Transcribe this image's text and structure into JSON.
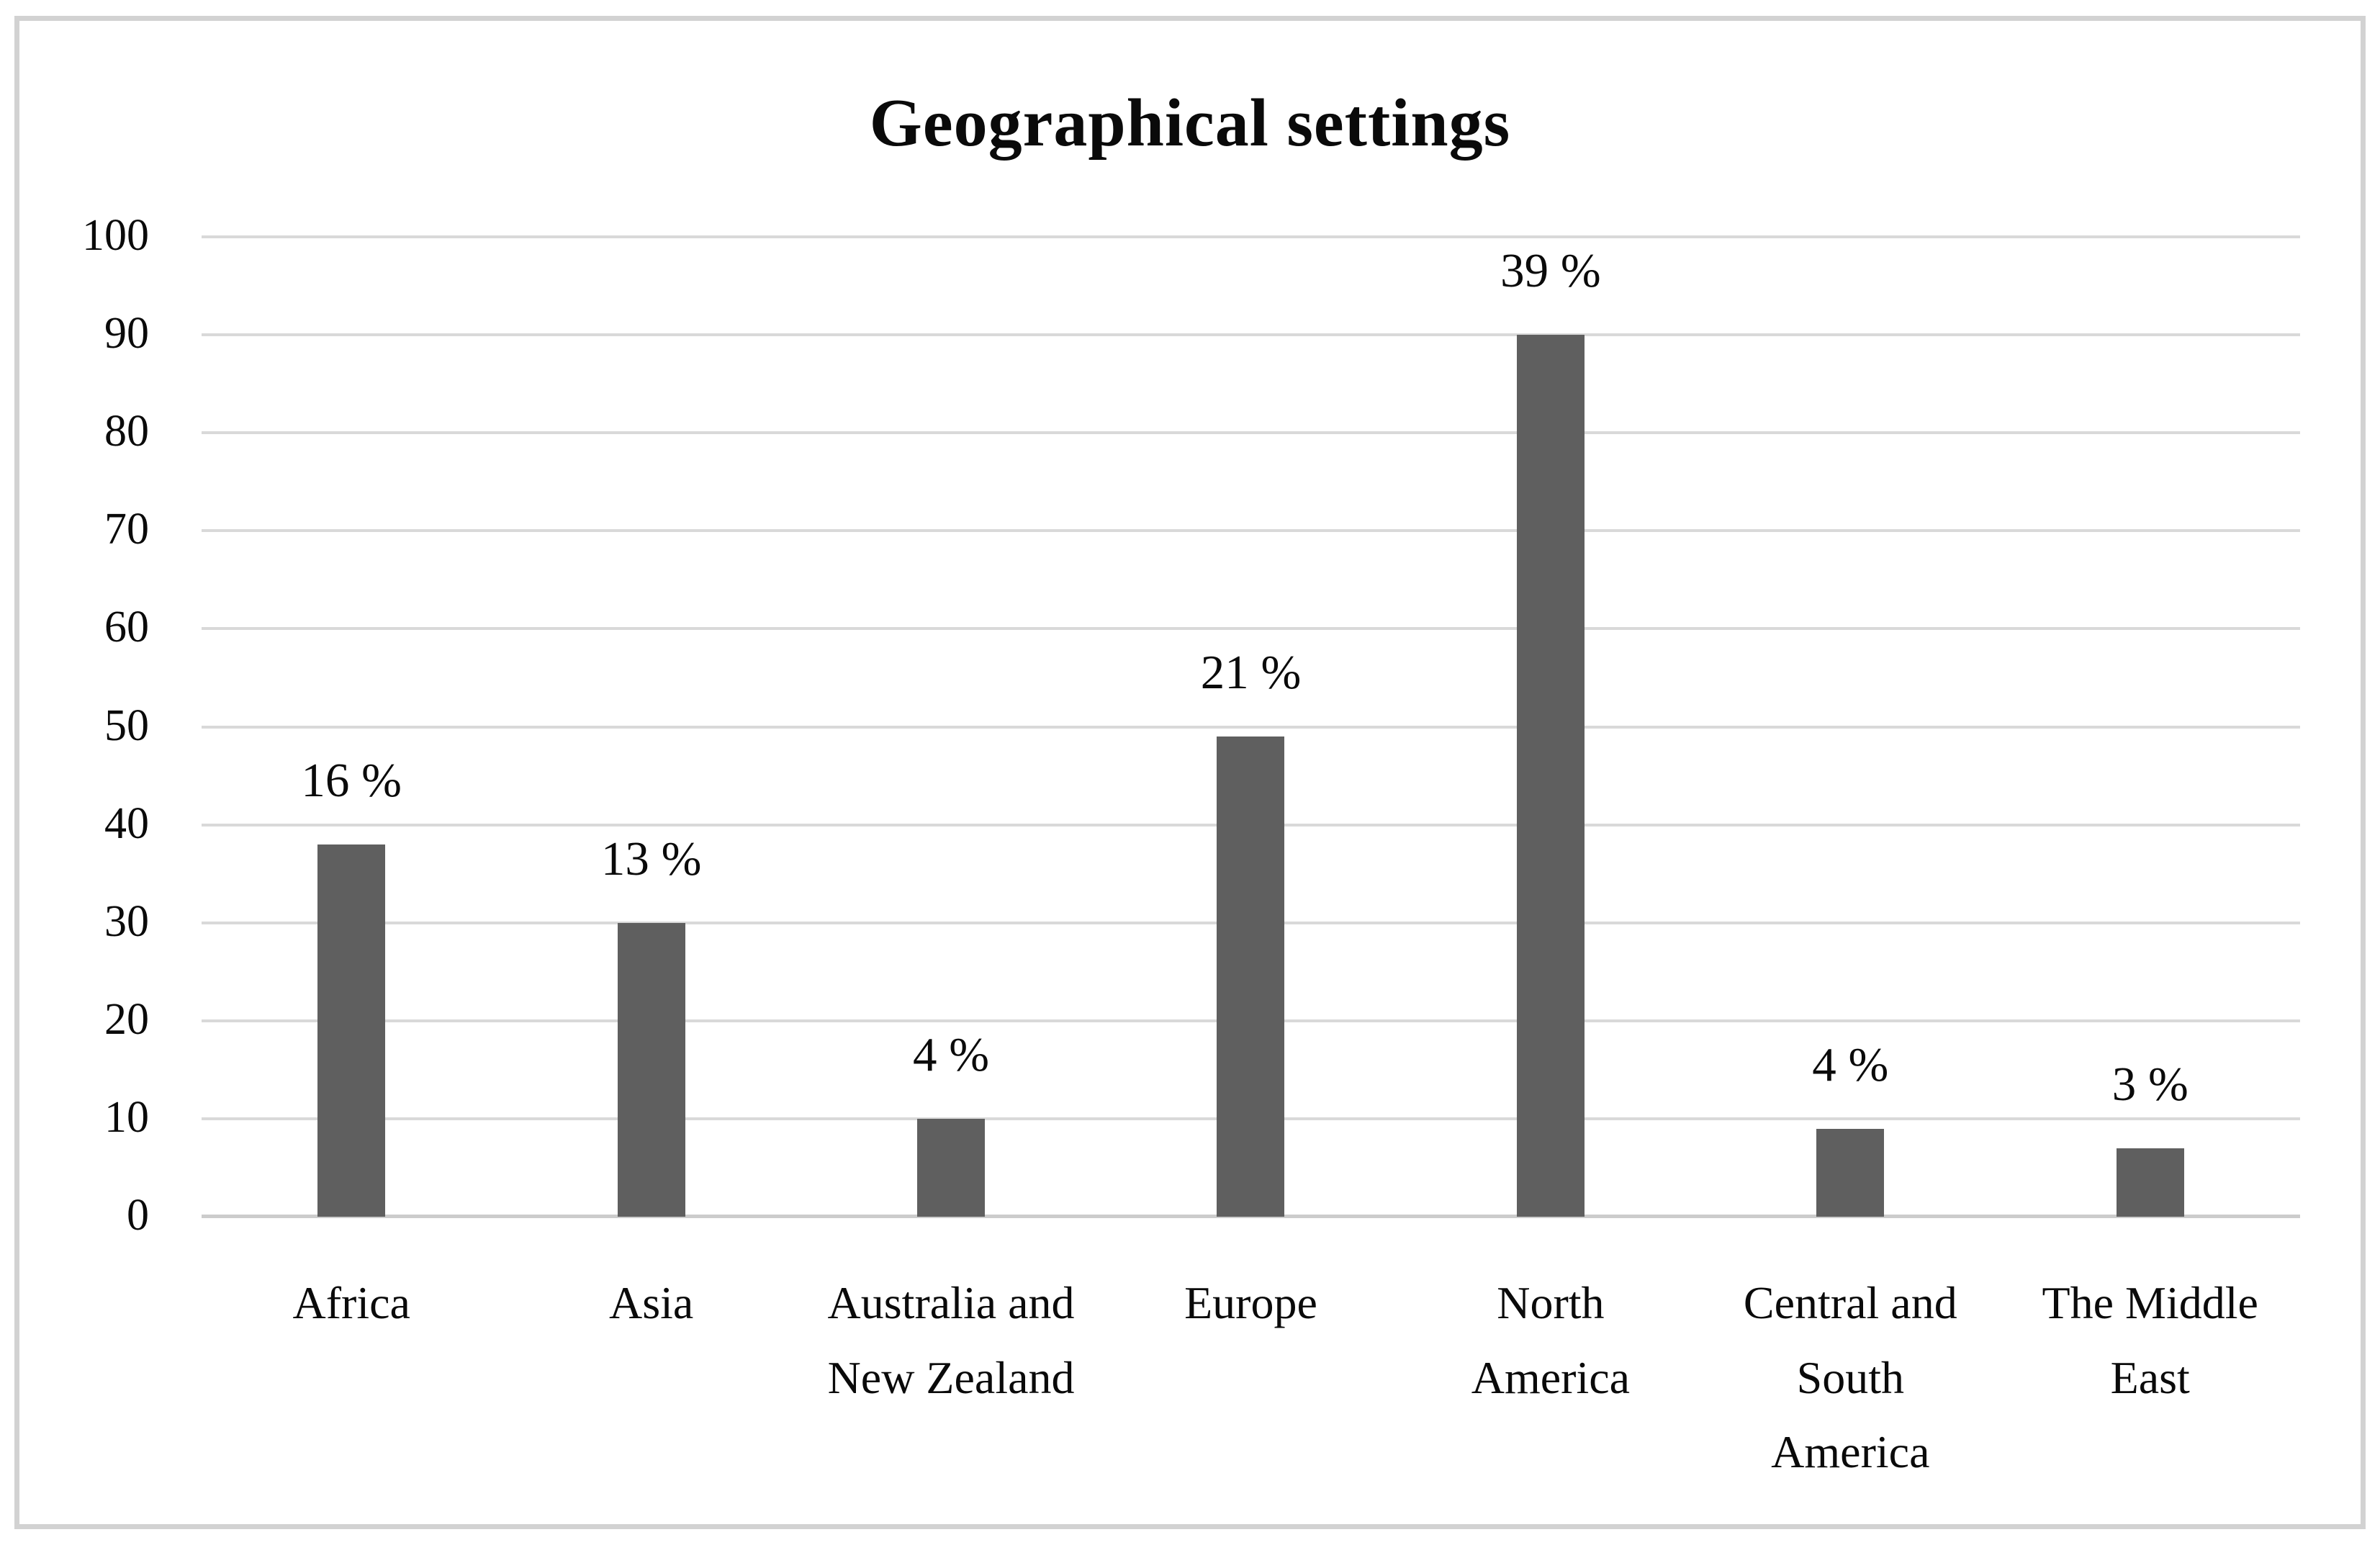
{
  "chart_data": {
    "type": "bar",
    "title": "Geographical settings",
    "categories": [
      "Africa",
      "Asia",
      "Australia and New Zealand",
      "Europe",
      "North America",
      "Central and South America",
      "The Middle East"
    ],
    "values": [
      38,
      30,
      10,
      49,
      90,
      9,
      7
    ],
    "data_labels": [
      "16 %",
      "13 %",
      "4 %",
      "21 %",
      "39 %",
      "4 %",
      "3 %"
    ],
    "xlabel": "",
    "ylabel": "",
    "ylim": [
      0,
      100
    ],
    "yticks": [
      0,
      10,
      20,
      30,
      40,
      50,
      60,
      70,
      80,
      90,
      100
    ],
    "grid": true,
    "legend": false,
    "bar_color": "#5f5f5f",
    "gridline_color": "#d9d9d9",
    "axis_line_color": "#cccccc",
    "frame_border_color": "#d2d2d2",
    "text_color": "#0a0a0a"
  }
}
